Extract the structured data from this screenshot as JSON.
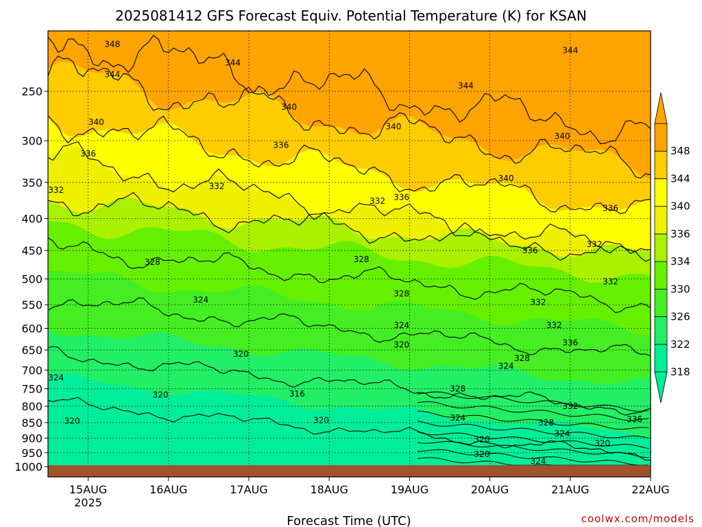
{
  "chart_data": {
    "type": "heatmap",
    "title": "2025081412 GFS Forecast Equiv. Potential Temperature (K) for KSAN",
    "xlabel": "Forecast Time (UTC)",
    "ylabel": "",
    "x_ticks": [
      {
        "label": "15AUG",
        "sublabel": "2025",
        "day": 15
      },
      {
        "label": "16AUG",
        "day": 16
      },
      {
        "label": "17AUG",
        "day": 17
      },
      {
        "label": "18AUG",
        "day": 18
      },
      {
        "label": "19AUG",
        "day": 19
      },
      {
        "label": "20AUG",
        "day": 20
      },
      {
        "label": "21AUG",
        "day": 21
      },
      {
        "label": "22AUG",
        "day": 22
      }
    ],
    "xlim": [
      14.5,
      22.0
    ],
    "y_ticks": [
      250,
      300,
      350,
      400,
      450,
      500,
      550,
      600,
      650,
      700,
      750,
      800,
      850,
      900,
      950,
      1000
    ],
    "ylim": [
      1000,
      200
    ],
    "y_scale": "log-pressure",
    "units": "K",
    "colorbar": {
      "levels": [
        318,
        322,
        326,
        330,
        334,
        336,
        340,
        344,
        348
      ],
      "colors": [
        "#00ee99",
        "#22ee66",
        "#44ee22",
        "#66f000",
        "#aaf000",
        "#eef000",
        "#ffff00",
        "#ffcc00",
        "#ffa400"
      ],
      "extend": "both"
    },
    "contour_interval": 4,
    "contour_labels": [
      {
        "value": 348,
        "day": 15.3,
        "p": 210
      },
      {
        "value": 344,
        "day": 15.3,
        "p": 235
      },
      {
        "value": 344,
        "day": 16.8,
        "p": 225
      },
      {
        "value": 344,
        "day": 19.7,
        "p": 245
      },
      {
        "value": 344,
        "day": 21.0,
        "p": 215
      },
      {
        "value": 340,
        "day": 15.1,
        "p": 280
      },
      {
        "value": 340,
        "day": 17.5,
        "p": 265
      },
      {
        "value": 340,
        "day": 18.8,
        "p": 285
      },
      {
        "value": 340,
        "day": 20.2,
        "p": 345
      },
      {
        "value": 340,
        "day": 20.9,
        "p": 295
      },
      {
        "value": 336,
        "day": 15.0,
        "p": 315
      },
      {
        "value": 336,
        "day": 17.4,
        "p": 305
      },
      {
        "value": 336,
        "day": 18.9,
        "p": 370
      },
      {
        "value": 336,
        "day": 21.5,
        "p": 385
      },
      {
        "value": 332,
        "day": 14.6,
        "p": 360
      },
      {
        "value": 332,
        "day": 16.6,
        "p": 355
      },
      {
        "value": 332,
        "day": 18.6,
        "p": 375
      },
      {
        "value": 332,
        "day": 21.3,
        "p": 440
      },
      {
        "value": 328,
        "day": 15.8,
        "p": 470
      },
      {
        "value": 328,
        "day": 18.4,
        "p": 465
      },
      {
        "value": 328,
        "day": 18.9,
        "p": 528
      },
      {
        "value": 336,
        "day": 20.5,
        "p": 450
      },
      {
        "value": 332,
        "day": 21.5,
        "p": 505
      },
      {
        "value": 324,
        "day": 16.4,
        "p": 540
      },
      {
        "value": 324,
        "day": 18.9,
        "p": 593
      },
      {
        "value": 332,
        "day": 20.6,
        "p": 545
      },
      {
        "value": 332,
        "day": 20.8,
        "p": 593
      },
      {
        "value": 320,
        "day": 16.9,
        "p": 660
      },
      {
        "value": 320,
        "day": 18.9,
        "p": 638
      },
      {
        "value": 336,
        "day": 21.0,
        "p": 633
      },
      {
        "value": 328,
        "day": 20.4,
        "p": 670
      },
      {
        "value": 324,
        "day": 20.2,
        "p": 690
      },
      {
        "value": 324,
        "day": 14.6,
        "p": 720
      },
      {
        "value": 320,
        "day": 15.9,
        "p": 767
      },
      {
        "value": 316,
        "day": 17.6,
        "p": 764
      },
      {
        "value": 328,
        "day": 19.6,
        "p": 750
      },
      {
        "value": 332,
        "day": 21.0,
        "p": 800
      },
      {
        "value": 320,
        "day": 14.8,
        "p": 845
      },
      {
        "value": 320,
        "day": 17.9,
        "p": 843
      },
      {
        "value": 324,
        "day": 19.6,
        "p": 835
      },
      {
        "value": 328,
        "day": 20.7,
        "p": 850
      },
      {
        "value": 336,
        "day": 21.8,
        "p": 840
      },
      {
        "value": 324,
        "day": 20.9,
        "p": 885
      },
      {
        "value": 320,
        "day": 19.9,
        "p": 905
      },
      {
        "value": 320,
        "day": 21.4,
        "p": 918
      },
      {
        "value": 320,
        "day": 19.9,
        "p": 955
      },
      {
        "value": 324,
        "day": 20.6,
        "p": 980
      }
    ]
  },
  "credit": "coolwx.com/models"
}
